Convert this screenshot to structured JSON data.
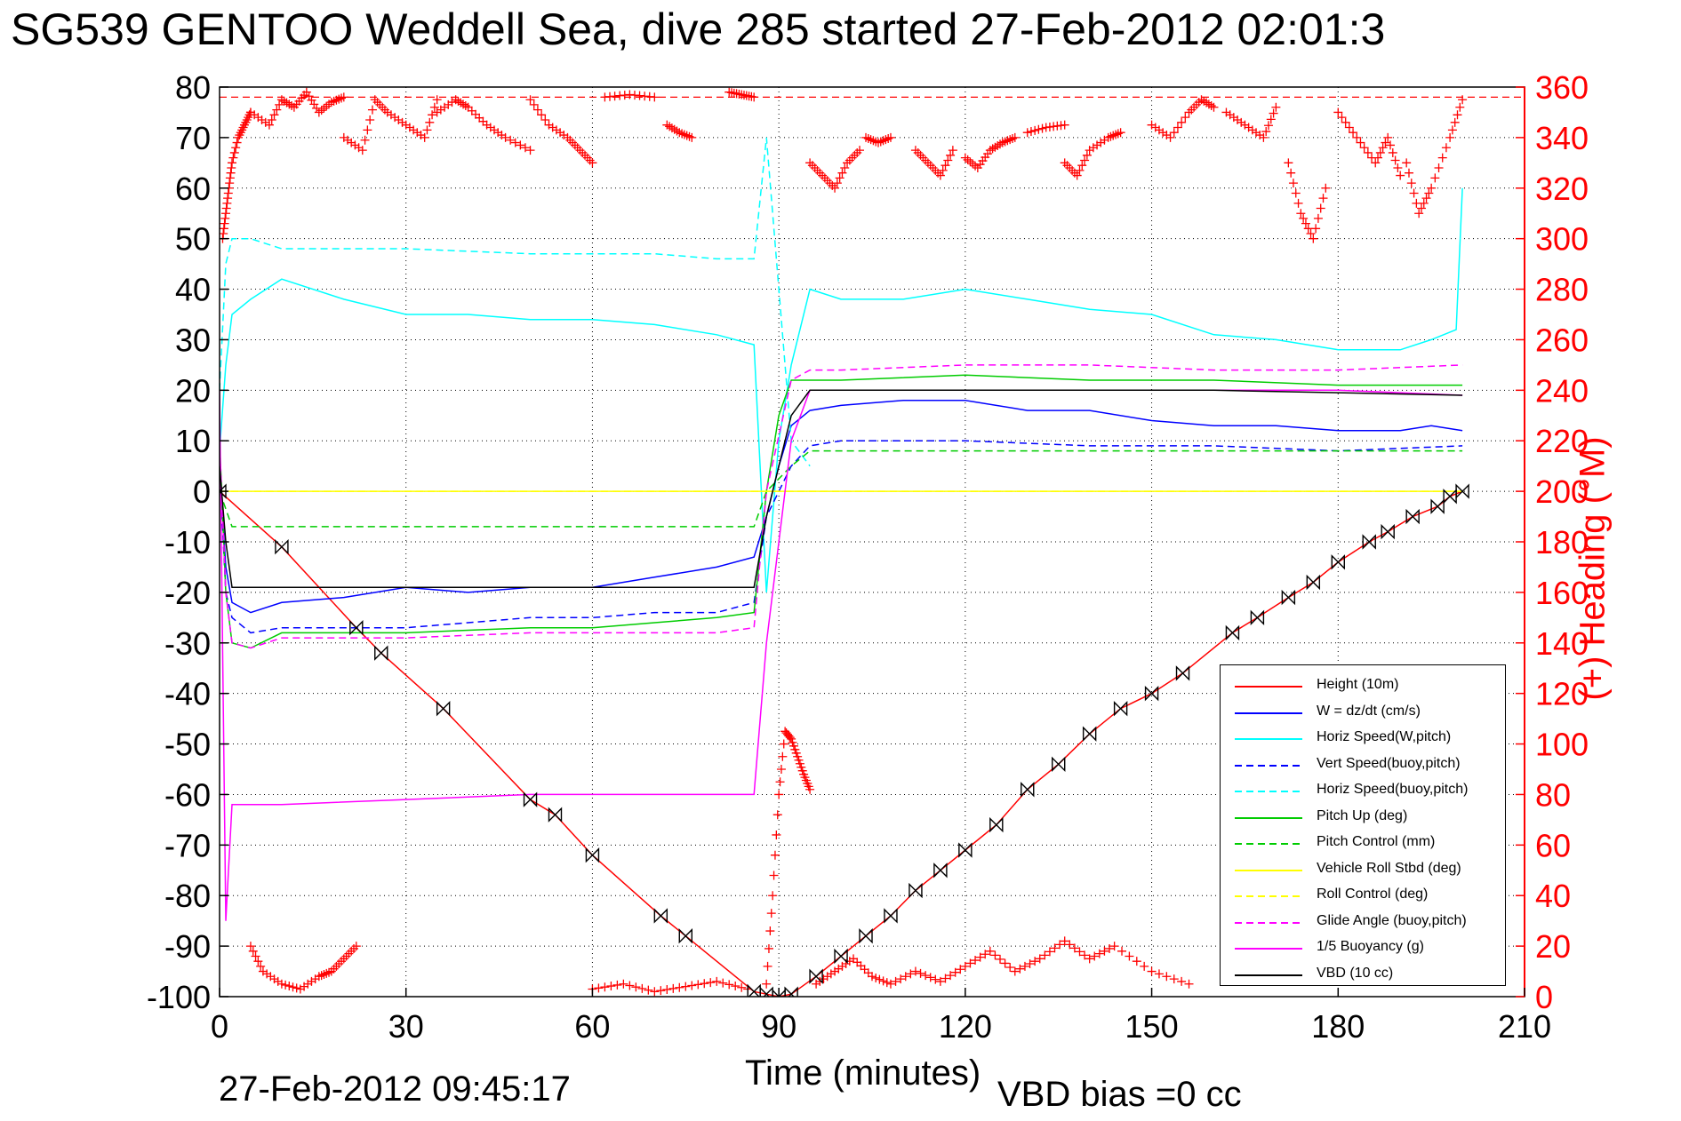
{
  "header": {
    "title": "SG539 GENTOO Weddell Sea, dive 285 started 27-Feb-2012 02:01:3"
  },
  "footer": {
    "timestamp": "27-Feb-2012 09:45:17",
    "vbd_bias": "VBD bias =0 cc"
  },
  "chart_data": {
    "type": "line",
    "title": "SG539 GENTOO Weddell Sea, dive 285 started 27-Feb-2012 02:01:3",
    "xlabel": "Time (minutes)",
    "ylabel": "",
    "y2label": "(+) Heading (°M)",
    "xlim": [
      0,
      210
    ],
    "ylim": [
      -100,
      80
    ],
    "y2lim": [
      0,
      360
    ],
    "xticks": [
      0,
      30,
      60,
      90,
      120,
      150,
      180,
      210
    ],
    "yticks": [
      80,
      70,
      60,
      50,
      40,
      30,
      20,
      10,
      0,
      -10,
      -20,
      -30,
      -40,
      -50,
      -60,
      -70,
      -80,
      -90,
      -100
    ],
    "y2ticks": [
      360,
      340,
      320,
      300,
      280,
      260,
      240,
      220,
      200,
      180,
      160,
      140,
      120,
      100,
      80,
      60,
      40,
      20,
      0
    ],
    "grid": true,
    "legend_position": "bottom-right",
    "series": [
      {
        "name": "Height (10m)",
        "color": "#ff0000",
        "style": "solid",
        "x": [
          0,
          10,
          22,
          26,
          36,
          50,
          54,
          60,
          71,
          75,
          86,
          88,
          90,
          92,
          96,
          100,
          104,
          108,
          112,
          116,
          120,
          125,
          130,
          135,
          140,
          145,
          150,
          155,
          163,
          167,
          172,
          176,
          180,
          185,
          188,
          192,
          196,
          198,
          200
        ],
        "y": [
          0,
          -11,
          -27,
          -32,
          -43,
          -61,
          -64,
          -72,
          -84,
          -88,
          -99,
          -99.5,
          -100,
          -99.5,
          -96,
          -92,
          -88,
          -84,
          -79,
          -75,
          -71,
          -66,
          -59,
          -54,
          -48,
          -43,
          -40,
          -36,
          -28,
          -25,
          -21,
          -18,
          -14,
          -10,
          -8,
          -5,
          -3,
          -1,
          0
        ]
      },
      {
        "name": "W = dz/dt (cm/s)",
        "color": "#0000ff",
        "style": "solid",
        "x": [
          0,
          1,
          2,
          5,
          10,
          20,
          30,
          40,
          50,
          60,
          70,
          80,
          86,
          88,
          90,
          92,
          95,
          100,
          110,
          120,
          130,
          140,
          150,
          160,
          170,
          180,
          190,
          195,
          200
        ],
        "y": [
          5,
          -15,
          -22,
          -24,
          -22,
          -21,
          -19,
          -20,
          -19,
          -19,
          -17,
          -15,
          -13,
          -5,
          5,
          13,
          16,
          17,
          18,
          18,
          16,
          16,
          14,
          13,
          13,
          12,
          12,
          13,
          12
        ]
      },
      {
        "name": "Horiz Speed(W,pitch)",
        "color": "#00ffff",
        "style": "solid",
        "x": [
          0,
          1,
          2,
          5,
          10,
          20,
          30,
          40,
          50,
          60,
          70,
          80,
          86,
          88,
          90,
          92,
          95,
          100,
          110,
          120,
          130,
          140,
          150,
          160,
          170,
          180,
          190,
          195,
          199,
          200
        ],
        "y": [
          8,
          25,
          35,
          38,
          42,
          38,
          35,
          35,
          34,
          34,
          33,
          31,
          29,
          -20,
          10,
          25,
          40,
          38,
          38,
          40,
          38,
          36,
          35,
          31,
          30,
          28,
          28,
          30,
          32,
          60
        ]
      },
      {
        "name": "Vert Speed(buoy,pitch)",
        "color": "#0000ff",
        "style": "dashed",
        "x": [
          0,
          1,
          2,
          5,
          10,
          30,
          50,
          60,
          70,
          80,
          86,
          88,
          92,
          95,
          100,
          120,
          140,
          160,
          180,
          200
        ],
        "y": [
          5,
          -20,
          -25,
          -28,
          -27,
          -27,
          -25,
          -25,
          -24,
          -24,
          -22,
          -5,
          5,
          9,
          10,
          10,
          9,
          9,
          8,
          9
        ]
      },
      {
        "name": "Horiz Speed(buoy,pitch)",
        "color": "#00ffff",
        "style": "dashed",
        "x": [
          0,
          1,
          2,
          5,
          10,
          30,
          50,
          60,
          70,
          80,
          86,
          88,
          92,
          95
        ],
        "y": [
          20,
          45,
          50,
          50,
          48,
          48,
          47,
          47,
          47,
          46,
          46,
          70,
          10,
          5
        ]
      },
      {
        "name": "Pitch Up (deg)",
        "color": "#00cc00",
        "style": "solid",
        "x": [
          0,
          1,
          2,
          5,
          10,
          30,
          50,
          60,
          70,
          80,
          86,
          88,
          90,
          92,
          95,
          100,
          120,
          140,
          160,
          180,
          200
        ],
        "y": [
          10,
          -20,
          -30,
          -31,
          -28,
          -28,
          -27,
          -27,
          -26,
          -25,
          -24,
          0,
          15,
          22,
          22,
          22,
          23,
          22,
          22,
          21,
          21
        ]
      },
      {
        "name": "Pitch Control (mm)",
        "color": "#00cc00",
        "style": "dashed",
        "x": [
          0,
          2,
          5,
          50,
          86,
          88,
          92,
          95,
          120,
          200
        ],
        "y": [
          0,
          -7,
          -7,
          -7,
          -7,
          0,
          5,
          8,
          8,
          8
        ]
      },
      {
        "name": "Vehicle Roll Stbd (deg)",
        "color": "#ffff00",
        "style": "solid",
        "x": [
          0,
          10,
          30,
          60,
          86,
          90,
          100,
          130,
          160,
          200
        ],
        "y": [
          0,
          0,
          0,
          0,
          0,
          0,
          0,
          0,
          0,
          0
        ]
      },
      {
        "name": "Roll Control (deg)",
        "color": "#ffff00",
        "style": "dashed",
        "x": [
          0,
          200
        ],
        "y": [
          0,
          0
        ]
      },
      {
        "name": "Glide Angle (buoy,pitch)",
        "color": "#ff00ff",
        "style": "dashed",
        "x": [
          0,
          1,
          2,
          5,
          10,
          30,
          50,
          60,
          70,
          80,
          86,
          88,
          92,
          95,
          100,
          120,
          140,
          160,
          180,
          200
        ],
        "y": [
          10,
          -20,
          -30,
          -31,
          -29,
          -29,
          -28,
          -28,
          -28,
          -28,
          -27,
          0,
          22,
          24,
          24,
          25,
          25,
          24,
          24,
          25
        ]
      },
      {
        "name": "1/5 Buoyancy (g)",
        "color": "#ff00ff",
        "style": "solid",
        "x": [
          0,
          1,
          2,
          10,
          30,
          50,
          86,
          88,
          92,
          95,
          100,
          140,
          180,
          200
        ],
        "y": [
          20,
          -85,
          -62,
          -62,
          -61,
          -60,
          -60,
          -30,
          10,
          20,
          20,
          20,
          20,
          19
        ]
      },
      {
        "name": "VBD (10 cc)",
        "color": "#000000",
        "style": "solid",
        "x": [
          0,
          1,
          2,
          86,
          88,
          92,
          95,
          120,
          160,
          200
        ],
        "y": [
          5,
          -10,
          -19,
          -19,
          -5,
          15,
          20,
          20,
          20,
          19
        ]
      }
    ],
    "heading": {
      "name": "(+) Heading (°M)",
      "color": "#ff0000",
      "marker": "+",
      "reference_line": 356,
      "segments": [
        {
          "x": [
            0.5,
            1,
            1.5,
            2,
            3,
            4,
            5
          ],
          "y": [
            300,
            310,
            320,
            330,
            340,
            345,
            350
          ]
        },
        {
          "x": [
            5,
            8,
            10,
            12,
            14,
            16,
            18,
            20
          ],
          "y": [
            350,
            345,
            355,
            352,
            358,
            350,
            354,
            356
          ]
        },
        {
          "x": [
            20,
            23,
            25,
            27,
            30,
            33,
            35
          ],
          "y": [
            340,
            335,
            355,
            350,
            345,
            340,
            355
          ]
        },
        {
          "x": [
            35,
            38,
            40,
            43,
            46,
            50
          ],
          "y": [
            350,
            355,
            352,
            345,
            340,
            335
          ]
        },
        {
          "x": [
            50,
            53,
            56,
            58,
            60
          ],
          "y": [
            355,
            345,
            340,
            335,
            330
          ]
        },
        {
          "x": [
            62,
            66,
            70
          ],
          "y": [
            356,
            357,
            356
          ]
        },
        {
          "x": [
            72,
            74,
            76
          ],
          "y": [
            345,
            342,
            340
          ]
        },
        {
          "x": [
            82,
            84,
            86
          ],
          "y": [
            358,
            357,
            356
          ]
        },
        {
          "x": [
            88,
            89,
            90,
            91,
            92,
            93,
            94,
            95
          ],
          "y": [
            5,
            40,
            80,
            105,
            102,
            95,
            88,
            82
          ]
        },
        {
          "x": [
            95,
            97,
            99,
            101,
            103
          ],
          "y": [
            330,
            325,
            320,
            330,
            335
          ]
        },
        {
          "x": [
            104,
            106,
            108
          ],
          "y": [
            340,
            338,
            340
          ]
        },
        {
          "x": [
            112,
            114,
            116,
            118
          ],
          "y": [
            335,
            330,
            325,
            335
          ]
        },
        {
          "x": [
            120,
            122,
            124,
            126,
            128
          ],
          "y": [
            332,
            328,
            335,
            338,
            340
          ]
        },
        {
          "x": [
            130,
            133,
            136
          ],
          "y": [
            342,
            344,
            345
          ]
        },
        {
          "x": [
            136,
            138,
            140,
            143,
            145
          ],
          "y": [
            330,
            325,
            335,
            340,
            342
          ]
        },
        {
          "x": [
            150,
            153,
            156,
            158,
            160
          ],
          "y": [
            345,
            340,
            350,
            355,
            352
          ]
        },
        {
          "x": [
            162,
            165,
            168,
            170
          ],
          "y": [
            350,
            345,
            340,
            352
          ]
        },
        {
          "x": [
            172,
            174,
            176,
            178
          ],
          "y": [
            330,
            310,
            300,
            320
          ]
        },
        {
          "x": [
            180,
            183,
            186,
            188,
            190
          ],
          "y": [
            350,
            340,
            330,
            340,
            325
          ]
        },
        {
          "x": [
            191,
            193,
            195,
            198,
            200
          ],
          "y": [
            330,
            310,
            320,
            340,
            355
          ]
        },
        {
          "x": [
            5,
            7,
            10,
            13,
            16,
            18,
            20,
            22
          ],
          "y": [
            20,
            10,
            5,
            3,
            8,
            10,
            15,
            20
          ]
        },
        {
          "x": [
            60,
            65,
            70,
            75,
            80,
            85
          ],
          "y": [
            3,
            5,
            2,
            4,
            6,
            3
          ]
        },
        {
          "x": [
            96,
            99,
            102,
            105,
            108,
            112,
            116,
            120,
            124,
            128,
            132,
            136,
            140,
            144,
            150,
            156
          ],
          "y": [
            5,
            10,
            15,
            8,
            5,
            10,
            6,
            12,
            18,
            10,
            15,
            22,
            15,
            20,
            10,
            5
          ]
        }
      ]
    }
  }
}
